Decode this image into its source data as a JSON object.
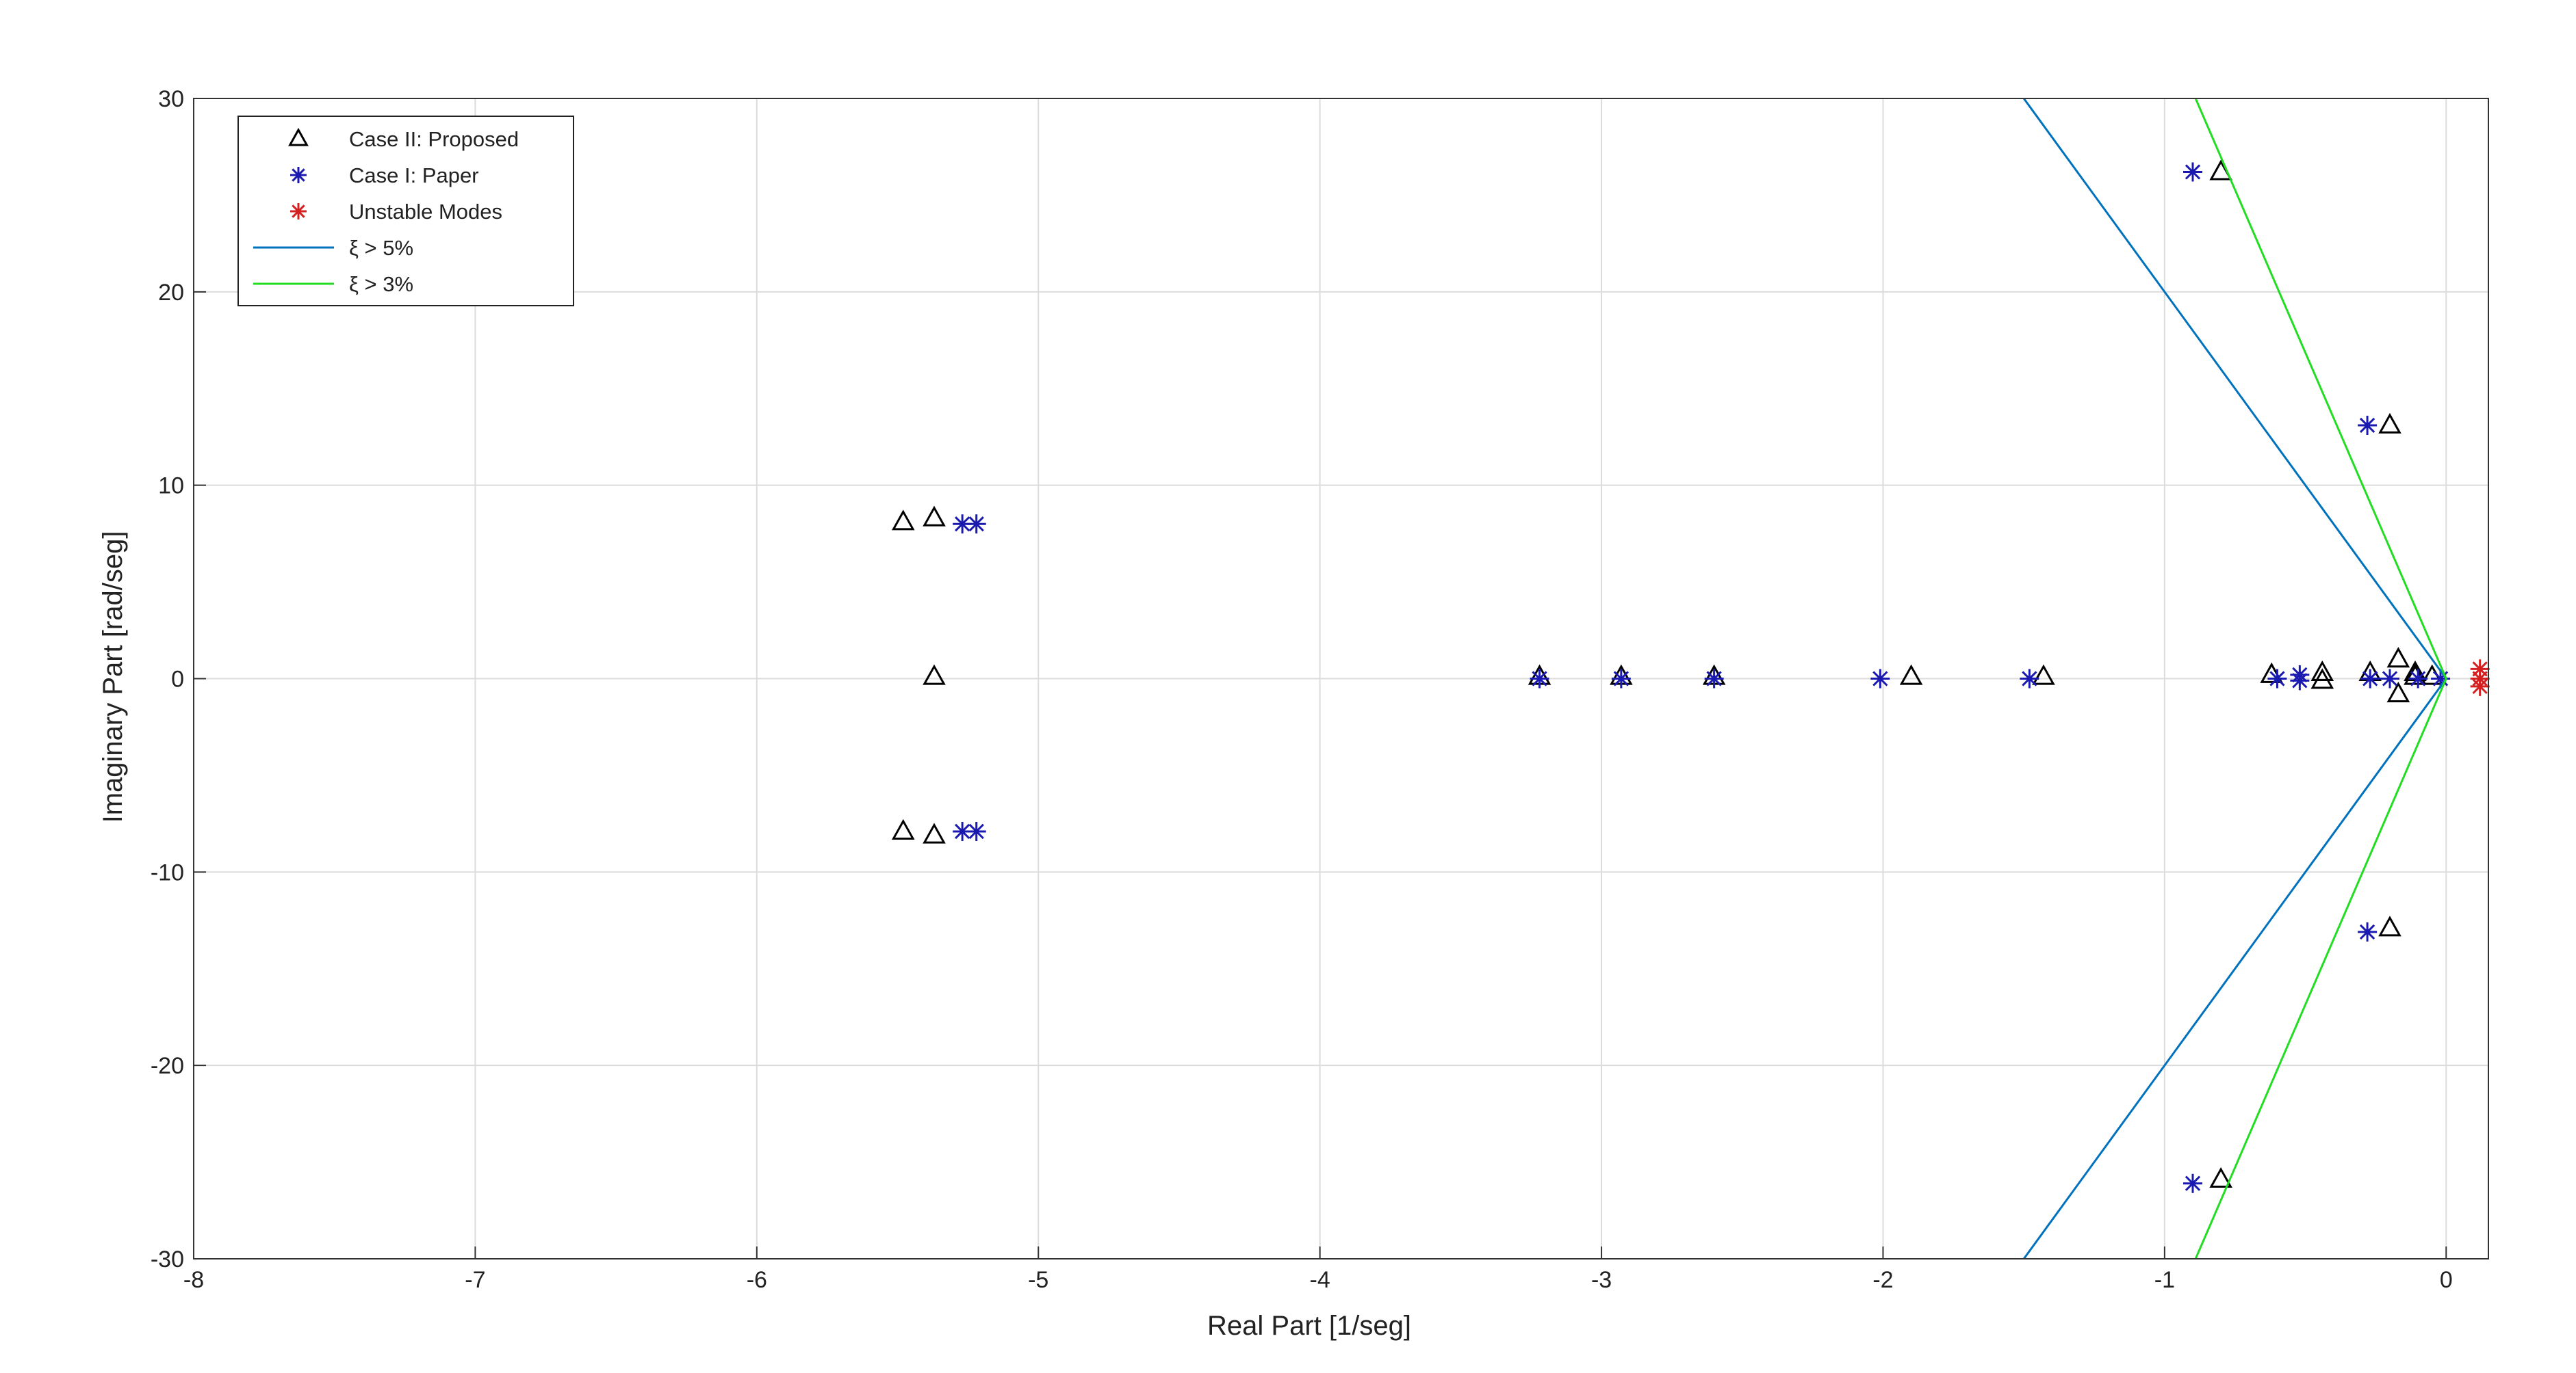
{
  "chart_data": {
    "type": "scatter",
    "xlabel": "Real Part [1/seg]",
    "ylabel": "Imaginary Part [rad/seg]",
    "xlim": [
      -8,
      0.15
    ],
    "ylim": [
      -30,
      30
    ],
    "xticks": [
      -8,
      -7,
      -6,
      -5,
      -4,
      -3,
      -2,
      -1,
      0
    ],
    "yticks": [
      -30,
      -20,
      -10,
      0,
      10,
      20,
      30
    ],
    "grid": true,
    "legend": "upper left",
    "series": [
      {
        "name": "Case II: Proposed",
        "color": "#000000",
        "marker": "triangle",
        "x": [
          -5.48,
          -5.37,
          -5.37,
          -5.48,
          -5.37,
          -1.9,
          -1.43,
          -3.22,
          -2.93,
          -2.6,
          -0.8,
          -0.2,
          -0.2,
          -0.8,
          -0.62,
          -0.44,
          -0.44,
          -0.17,
          -0.17,
          -0.11,
          -0.11,
          -0.05,
          -0.27
        ],
        "values": [
          8.1,
          8.3,
          0.1,
          -7.9,
          -8.1,
          0.1,
          0.1,
          0.1,
          0.1,
          0.1,
          26.2,
          13.1,
          -12.9,
          -25.9,
          0.2,
          0.3,
          -0.1,
          1.0,
          -0.8,
          0.3,
          0.1,
          0.1,
          0.3
        ]
      },
      {
        "name": "Case I: Paper",
        "color": "#1a1ab0",
        "marker": "asterisk",
        "x": [
          -5.27,
          -5.22,
          -5.27,
          -5.22,
          -3.22,
          -2.93,
          -2.6,
          -2.01,
          -1.48,
          -0.9,
          -0.28,
          -0.28,
          -0.9,
          -0.6,
          -0.52,
          -0.52,
          -0.27,
          -0.2,
          -0.1,
          -0.02
        ],
        "values": [
          8.0,
          8.0,
          -7.9,
          -7.9,
          0,
          0,
          0,
          0,
          0,
          26.2,
          13.1,
          -13.1,
          -26.1,
          0,
          0.2,
          -0.1,
          0,
          0,
          0,
          0
        ]
      },
      {
        "name": "Unstable Modes",
        "color": "#d42020",
        "marker": "asterisk",
        "x": [
          0.12,
          0.12,
          0.12
        ],
        "values": [
          0.5,
          -0.4,
          0
        ]
      },
      {
        "name": "ξ > 5%",
        "color": "#0072bd",
        "marker": "line",
        "x": [
          -1.5,
          0,
          -1.5
        ],
        "values": [
          30,
          0,
          -30
        ]
      },
      {
        "name": "ξ > 3%",
        "color": "#22dd22",
        "marker": "line",
        "x": [
          -0.89,
          0,
          -0.89
        ],
        "values": [
          30,
          0,
          -30
        ]
      }
    ]
  }
}
